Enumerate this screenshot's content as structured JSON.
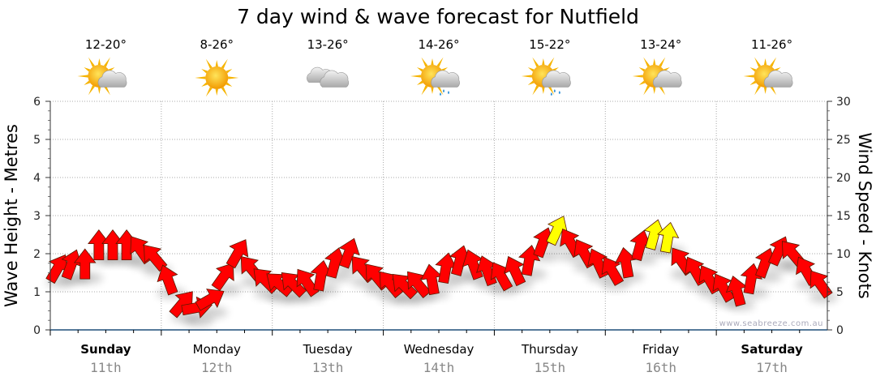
{
  "chart_data": {
    "type": "scatter",
    "title": "7 day wind & wave forecast for Nutfield",
    "ylabel_left": "Wave Height - Metres",
    "ylabel_right": "Wind Speed - Knots",
    "ylim_left": [
      0,
      6
    ],
    "ylim_right": [
      0,
      30
    ],
    "yticks_left": [
      "0",
      "1",
      "2",
      "3",
      "4",
      "5",
      "6"
    ],
    "yticks_right": [
      "0",
      "5",
      "10",
      "15",
      "20",
      "25",
      "30"
    ],
    "grid": true,
    "watermark": "www.seabreeze.com.au",
    "highlight_threshold_knots": 12,
    "colors": {
      "normal": "#ff0000",
      "strong": "#ffff00",
      "axis": "#1f4e79",
      "grid": "#aaaaaa"
    },
    "days": [
      {
        "name": "Sunday",
        "date": "11th",
        "temp": "12-20°",
        "icon": "partly-cloudy",
        "bold": true
      },
      {
        "name": "Monday",
        "date": "12th",
        "temp": "8-26°",
        "icon": "sunny",
        "bold": false
      },
      {
        "name": "Tuesday",
        "date": "13th",
        "temp": "13-26°",
        "icon": "cloudy",
        "bold": false
      },
      {
        "name": "Wednesday",
        "date": "14th",
        "temp": "14-26°",
        "icon": "partly-cloudy-showers",
        "bold": false
      },
      {
        "name": "Thursday",
        "date": "15th",
        "temp": "15-22°",
        "icon": "partly-cloudy-rain",
        "bold": false
      },
      {
        "name": "Friday",
        "date": "16th",
        "temp": "13-24°",
        "icon": "partly-cloudy",
        "bold": false
      },
      {
        "name": "Saturday",
        "date": "17th",
        "temp": "11-26°",
        "icon": "partly-cloudy",
        "bold": true
      }
    ],
    "wind_step_hours": 3,
    "wind_knots": [
      8,
      8.5,
      8.5,
      11,
      11,
      11,
      10.5,
      9.5,
      6.5,
      3.4,
      2.9,
      4,
      7,
      10,
      8,
      6.5,
      6,
      6,
      6.2,
      7,
      8.7,
      10,
      8,
      7,
      6,
      5.8,
      6,
      6.5,
      8,
      9,
      8.5,
      7.7,
      7,
      7.7,
      9,
      11.4,
      13,
      11.4,
      10,
      8.7,
      7.7,
      8.7,
      11,
      12.4,
      12,
      9,
      7.7,
      6.6,
      5.5,
      5,
      6.6,
      8.7,
      10.3,
      10,
      7.7,
      6
    ],
    "wind_heading_deg": [
      30,
      20,
      0,
      0,
      0,
      0,
      -35,
      -40,
      -20,
      40,
      80,
      60,
      35,
      30,
      -40,
      -45,
      -50,
      -45,
      -35,
      10,
      15,
      20,
      -40,
      -40,
      -40,
      -45,
      -40,
      -10,
      10,
      15,
      -20,
      -20,
      -30,
      -25,
      10,
      20,
      25,
      -30,
      -30,
      -25,
      -30,
      -10,
      15,
      15,
      10,
      -35,
      -30,
      -30,
      -30,
      -15,
      10,
      20,
      25,
      -40,
      -30,
      -35
    ]
  }
}
